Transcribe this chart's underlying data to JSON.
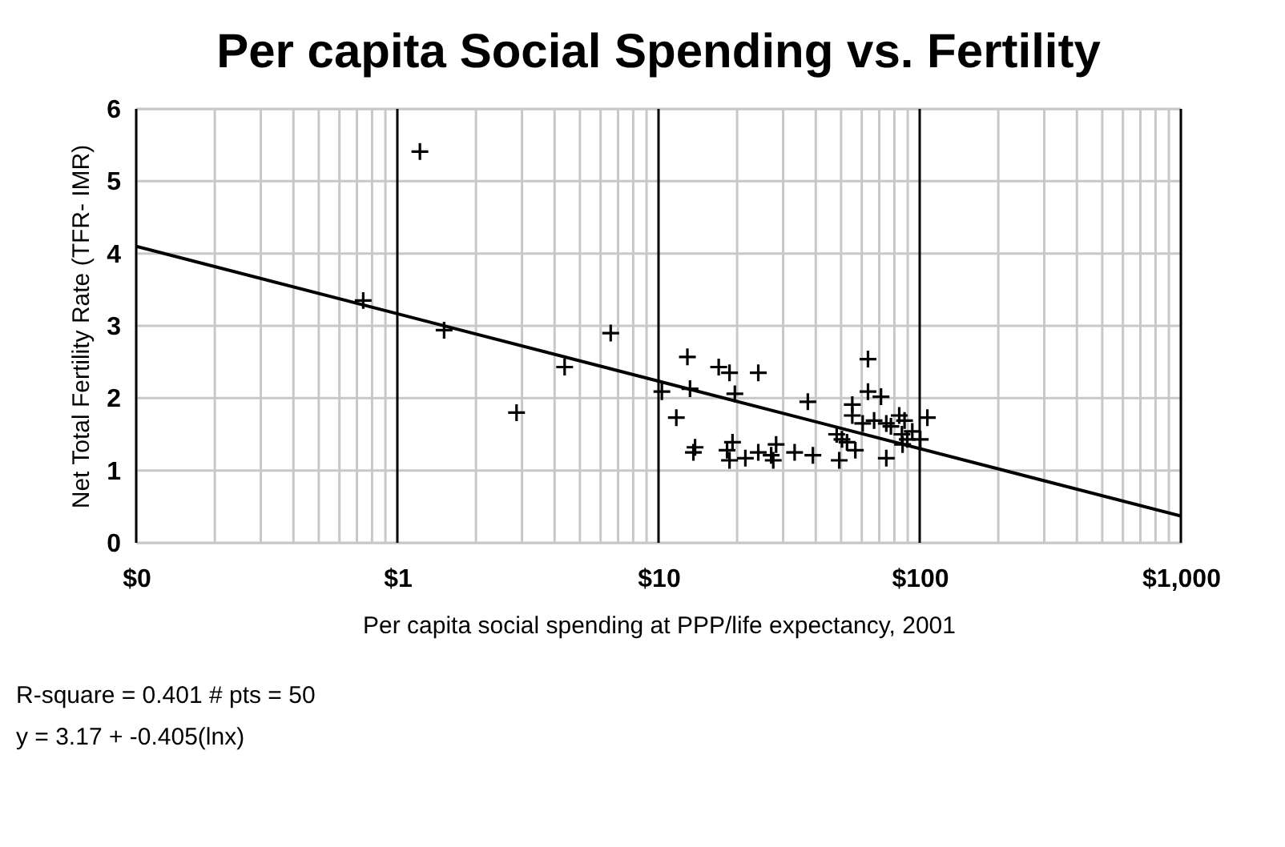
{
  "chart_data": {
    "type": "scatter",
    "title": "Per capita Social Spending vs. Fertility",
    "xlabel": "Per capita social spending at PPP/life expectancy, 2001",
    "ylabel": "Net Total Fertility Rate (TFR- IMR)",
    "annotations": [
      "R-square = 0.401   # pts = 50",
      "y = 3.17 + -0.405(lnx)"
    ],
    "log": "x",
    "grid": "xy",
    "marker": "cross",
    "xlim": [
      0.1,
      1000
    ],
    "ylim": [
      0,
      6
    ],
    "xticks": [
      {
        "value": 0.1,
        "label": "$0"
      },
      {
        "value": 0.2,
        "label": null
      },
      {
        "value": 0.3,
        "label": null
      },
      {
        "value": 0.4,
        "label": null
      },
      {
        "value": 0.5,
        "label": null
      },
      {
        "value": 0.6,
        "label": null
      },
      {
        "value": 0.7,
        "label": null
      },
      {
        "value": 0.8,
        "label": null
      },
      {
        "value": 0.9,
        "label": null
      },
      {
        "value": 1,
        "label": "$1"
      },
      {
        "value": 2,
        "label": null
      },
      {
        "value": 3,
        "label": null
      },
      {
        "value": 4,
        "label": null
      },
      {
        "value": 5,
        "label": null
      },
      {
        "value": 6,
        "label": null
      },
      {
        "value": 7,
        "label": null
      },
      {
        "value": 8,
        "label": null
      },
      {
        "value": 9,
        "label": null
      },
      {
        "value": 10,
        "label": "$10"
      },
      {
        "value": 20,
        "label": null
      },
      {
        "value": 30,
        "label": null
      },
      {
        "value": 40,
        "label": null
      },
      {
        "value": 50,
        "label": null
      },
      {
        "value": 60,
        "label": null
      },
      {
        "value": 70,
        "label": null
      },
      {
        "value": 80,
        "label": null
      },
      {
        "value": 90,
        "label": null
      },
      {
        "value": 100,
        "label": "$100"
      },
      {
        "value": 200,
        "label": null
      },
      {
        "value": 300,
        "label": null
      },
      {
        "value": 400,
        "label": null
      },
      {
        "value": 500,
        "label": null
      },
      {
        "value": 600,
        "label": null
      },
      {
        "value": 700,
        "label": null
      },
      {
        "value": 800,
        "label": null
      },
      {
        "value": 900,
        "label": null
      },
      {
        "value": 1000,
        "label": "$1,000"
      }
    ],
    "yticks": [
      0,
      1,
      2,
      3,
      4,
      5,
      6
    ],
    "series": [
      {
        "color": "#000000",
        "x": [
          1.22,
          0.74,
          1.51,
          6.56,
          4.37,
          2.86,
          10.3,
          11.7,
          12.9,
          13.2,
          13.8,
          13.6,
          17.0,
          18.7,
          24.1,
          19.6,
          18.3,
          18.7,
          19.2,
          21.5,
          24.1,
          27.0,
          28.2,
          27.5,
          33.2,
          39.0,
          37.3,
          48.1,
          49.2,
          50.4,
          52.7,
          56.7,
          55.2,
          55.2,
          60.5,
          63.4,
          63.4,
          71.1,
          66.9,
          74.5,
          74.5,
          77.6,
          83.5,
          87.5,
          85.5,
          89.6,
          93.7,
          100.5,
          107,
          86
        ],
        "values": [
          5.41,
          3.35,
          2.94,
          2.9,
          2.43,
          1.8,
          2.09,
          1.73,
          2.57,
          2.13,
          1.32,
          1.25,
          2.43,
          2.35,
          2.35,
          2.06,
          1.28,
          1.14,
          1.39,
          1.17,
          1.25,
          1.21,
          1.36,
          1.14,
          1.25,
          1.21,
          1.95,
          1.5,
          1.14,
          1.43,
          1.39,
          1.28,
          1.91,
          1.76,
          1.65,
          2.54,
          2.09,
          2.02,
          1.69,
          1.65,
          1.17,
          1.61,
          1.76,
          1.69,
          1.5,
          1.43,
          1.54,
          1.43,
          1.73,
          1.36
        ]
      },
      {
        "type": "line",
        "marker": "none",
        "color": "#000000",
        "x": [
          0.1,
          1000
        ],
        "values": [
          4.1,
          0.37
        ]
      }
    ]
  }
}
